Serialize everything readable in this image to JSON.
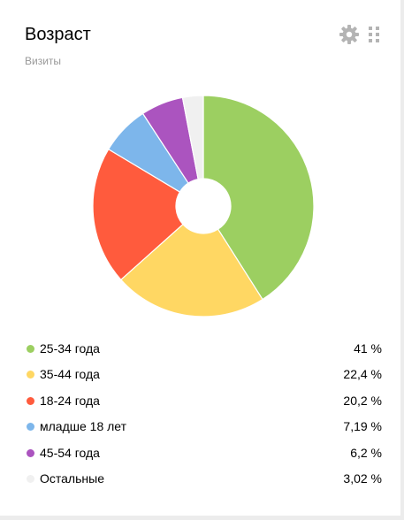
{
  "widget": {
    "title": "Возраст",
    "subtitle": "Визиты"
  },
  "toolbar": {
    "settings_icon": "gear-icon",
    "drag_icon": "drag-handle-icon"
  },
  "chart_data": {
    "type": "pie",
    "donut": true,
    "categories": [
      "25-34 года",
      "35-44 года",
      "18-24 года",
      "младше 18 лет",
      "45-54 года",
      "Остальные"
    ],
    "values": [
      41,
      22.4,
      20.2,
      7.19,
      6.2,
      3.02
    ],
    "unit": "%",
    "colors": [
      "#9ccf61",
      "#ffd763",
      "#ff5b3d",
      "#7db6eb",
      "#ab54bf",
      "#f0f0f0"
    ]
  },
  "legend": [
    {
      "label": "25-34 года",
      "value": "41 %",
      "color": "#9ccf61"
    },
    {
      "label": "35-44 года",
      "value": "22,4 %",
      "color": "#ffd763"
    },
    {
      "label": "18-24 года",
      "value": "20,2 %",
      "color": "#ff5b3d"
    },
    {
      "label": "младше 18 лет",
      "value": "7,19 %",
      "color": "#7db6eb"
    },
    {
      "label": "45-54 года",
      "value": "6,2 %",
      "color": "#ab54bf"
    },
    {
      "label": "Остальные",
      "value": "3,02 %",
      "color": "#f0f0f0"
    }
  ]
}
